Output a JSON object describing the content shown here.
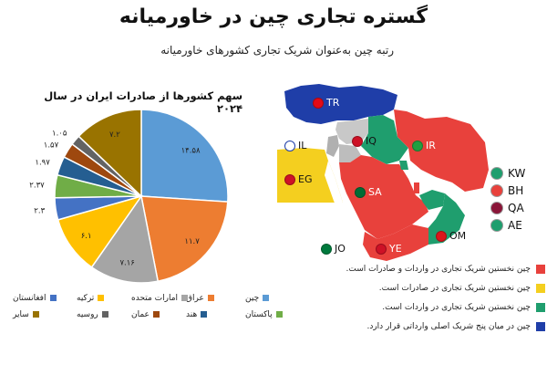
{
  "header": {
    "title": "گستره تجاری چین در خاورمیانه",
    "subtitle": "رتبه چین به‌عنوان شریک تجاری کشورهای خاورمیانه"
  },
  "chart_data": {
    "type": "pie",
    "title": "سهم کشورها از صادرات ایران در سال ۲۰۲۴",
    "slices": [
      {
        "name": "چین",
        "value": 14.58,
        "label": "۱۴.۵۸",
        "color": "#5b9bd5"
      },
      {
        "name": "عراق",
        "value": 11.7,
        "label": "۱۱.۷",
        "color": "#ed7d31"
      },
      {
        "name": "امارات متحده",
        "value": 7.16,
        "label": "۷.۱۶",
        "color": "#a5a5a5"
      },
      {
        "name": "ترکیه",
        "value": 6.1,
        "label": "۶.۱",
        "color": "#ffc000"
      },
      {
        "name": "افغانستان",
        "value": 2.3,
        "label": "۲.۳",
        "color": "#4472c4"
      },
      {
        "name": "پاکستان",
        "value": 2.37,
        "label": "۲.۳۷",
        "color": "#70ad47"
      },
      {
        "name": "هند",
        "value": 1.97,
        "label": "۱.۹۷",
        "color": "#255e91"
      },
      {
        "name": "عمان",
        "value": 1.57,
        "label": "۱.۵۷",
        "color": "#9e480e"
      },
      {
        "name": "روسیه",
        "value": 1.05,
        "label": "۱.۰۵",
        "color": "#636363"
      },
      {
        "name": "سایر",
        "value": 7.2,
        "label": "۷.۲",
        "color": "#997300"
      }
    ]
  },
  "map": {
    "labels": {
      "TR": "TR",
      "IL": "IL",
      "IQ": "IQ",
      "IR": "IR",
      "EG": "EG",
      "SA": "SA",
      "JO": "JO",
      "YE": "YE",
      "OM": "OM"
    },
    "colors": {
      "red": "#e8413c",
      "yellow": "#f4cf1f",
      "green": "#1f9e6e",
      "blue": "#1f3ea8"
    },
    "flag_list": [
      {
        "code": "KW",
        "color": "#1f9e6e"
      },
      {
        "code": "BH",
        "color": "#e8413c"
      },
      {
        "code": "QA",
        "color": "#8a1538"
      },
      {
        "code": "AE",
        "color": "#1f9e6e"
      }
    ],
    "legend": [
      {
        "text": "چین نخستین شریک تجاری در واردات و صادرات است.",
        "color": "#e8413c"
      },
      {
        "text": "چین نخستین شریک تجاری در صادرات است.",
        "color": "#f4cf1f"
      },
      {
        "text": "چین نخستین شریک تجاری در واردات است.",
        "color": "#1f9e6e"
      },
      {
        "text": "چین در میان پنج شریک اصلی وارداتی قرار دارد.",
        "color": "#1f3ea8"
      }
    ]
  }
}
